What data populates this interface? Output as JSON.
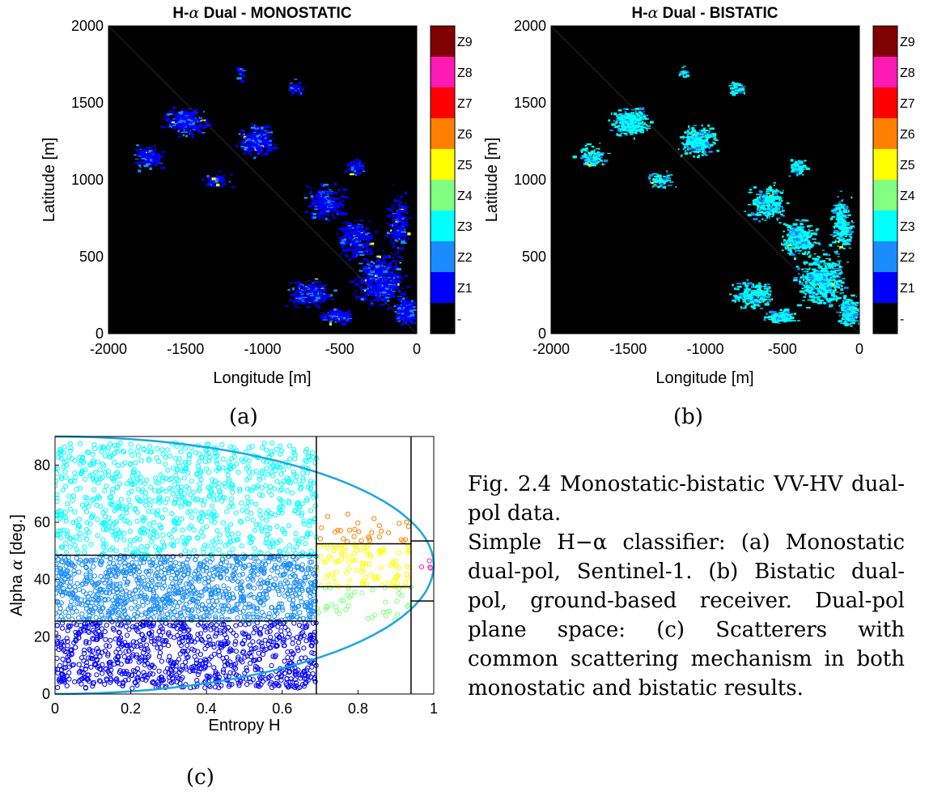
{
  "panels": {
    "a": {
      "title_prefix": "H-",
      "title_alpha": "α",
      "title_suffix": " Dual - MONOSTATIC",
      "xlabel": "Longitude [m]",
      "ylabel": "Latitude [m]",
      "xticks": [
        "-2000",
        "-1500",
        "-1000",
        "-500",
        "0"
      ],
      "yticks": [
        "0",
        "500",
        "1000",
        "1500",
        "2000"
      ],
      "label": "(a)",
      "dominant_class": "Z1"
    },
    "b": {
      "title_prefix": "H-",
      "title_alpha": "α",
      "title_suffix": " Dual - BISTATIC",
      "xlabel": "Longitude [m]",
      "ylabel": "Latitude [m]",
      "xticks": [
        "-2000",
        "-1500",
        "-1000",
        "-500",
        "0"
      ],
      "yticks": [
        "0",
        "500",
        "1000",
        "1500",
        "2000"
      ],
      "label": "(b)",
      "dominant_class": "Z3"
    },
    "c": {
      "xlabel": "Entropy H",
      "ylabel_prefix": "Alpha ",
      "ylabel_alpha": "α",
      "ylabel_suffix": " [deg.]",
      "xticks": [
        "0",
        "0.2",
        "0.4",
        "0.6",
        "0.8",
        "1"
      ],
      "yticks": [
        "0",
        "20",
        "40",
        "60",
        "80"
      ],
      "label": "(c)"
    }
  },
  "colorbar": {
    "labels": [
      "Z9",
      "Z8",
      "Z7",
      "Z6",
      "Z5",
      "Z4",
      "Z3",
      "Z2",
      "Z1",
      "-"
    ],
    "colors": [
      "#800000",
      "#ff1ab3",
      "#ff0000",
      "#ff8000",
      "#ffff00",
      "#80ff80",
      "#00ffff",
      "#1a8cff",
      "#0000ff",
      "#000000"
    ]
  },
  "chart_data": [
    {
      "type": "heatmap",
      "title": "H-α Dual - MONOSTATIC",
      "xlabel": "Longitude [m]",
      "ylabel": "Latitude [m]",
      "xlim": [
        -2000,
        0
      ],
      "ylim": [
        0,
        2000
      ],
      "classes": [
        "-",
        "Z1",
        "Z2",
        "Z3",
        "Z4",
        "Z5",
        "Z6",
        "Z7",
        "Z8",
        "Z9"
      ],
      "dominant_class": "Z1"
    },
    {
      "type": "heatmap",
      "title": "H-α Dual - BISTATIC",
      "xlabel": "Longitude [m]",
      "ylabel": "Latitude [m]",
      "xlim": [
        -2000,
        0
      ],
      "ylim": [
        0,
        2000
      ],
      "classes": [
        "-",
        "Z1",
        "Z2",
        "Z3",
        "Z4",
        "Z5",
        "Z6",
        "Z7",
        "Z8",
        "Z9"
      ],
      "dominant_class": "Z3"
    },
    {
      "type": "scatter",
      "xlabel": "Entropy H",
      "ylabel": "Alpha α [deg.]",
      "xlim": [
        0,
        1
      ],
      "ylim": [
        0,
        90
      ],
      "boundaries": {
        "entropy": [
          0.69,
          0.94
        ],
        "alpha_low_entropy": [
          25.5,
          48.5
        ],
        "alpha_mid_entropy": [
          37.5,
          52.5
        ],
        "alpha_high_entropy": [
          32.5,
          53.5
        ]
      },
      "clusters": [
        {
          "class": "Z1",
          "color": "#0000ff",
          "h_range": [
            0,
            0.69
          ],
          "alpha_range": [
            2,
            25.5
          ]
        },
        {
          "class": "Z2",
          "color": "#1a8cff",
          "h_range": [
            0,
            0.69
          ],
          "alpha_range": [
            25.5,
            48.5
          ]
        },
        {
          "class": "Z3",
          "color": "#00ffff",
          "h_range": [
            0,
            0.69
          ],
          "alpha_range": [
            48.5,
            88
          ]
        },
        {
          "class": "Z4",
          "color": "#80ff80",
          "h_range": [
            0.69,
            0.94
          ],
          "alpha_range": [
            26,
            37.5
          ]
        },
        {
          "class": "Z5",
          "color": "#ffff00",
          "h_range": [
            0.69,
            0.94
          ],
          "alpha_range": [
            37.5,
            52.5
          ]
        },
        {
          "class": "Z6",
          "color": "#ff8000",
          "h_range": [
            0.69,
            0.94
          ],
          "alpha_range": [
            52.5,
            63
          ]
        },
        {
          "class": "Z8",
          "color": "#ff1ab3",
          "h_range": [
            0.94,
            1
          ],
          "alpha_range": [
            37,
            48
          ]
        }
      ]
    }
  ],
  "caption": {
    "line1": "Fig. 2.4 Monostatic-bistatic VV-HV dual-pol data.",
    "line2": "Simple H−α classifier: (a) Monostatic dual-pol, Sentinel-1. (b) Bistatic dual-pol, ground-based receiver. Dual-pol plane space: (c) Scatterers with common scattering mechanism in both monostatic and bistatic results."
  }
}
